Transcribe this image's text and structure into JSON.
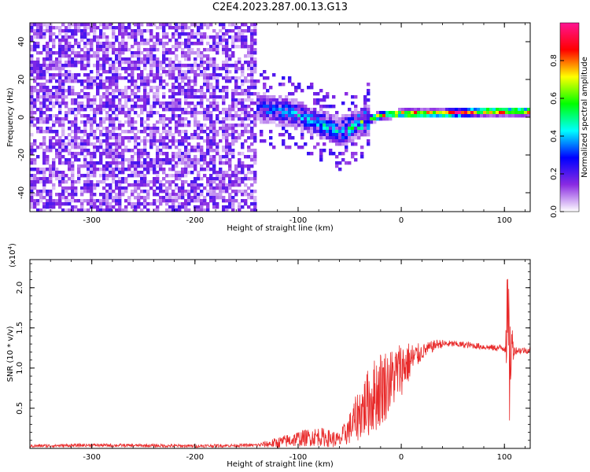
{
  "title": "C2E4.2023.287.00.13.G13",
  "chart_data": [
    {
      "type": "heatmap",
      "xlabel": "Height of straight line (km)",
      "ylabel": "Frequency (Hz)",
      "xlim": [
        -360,
        125
      ],
      "ylim": [
        -50,
        50
      ],
      "xticks": [
        -300,
        -200,
        -100,
        0,
        100
      ],
      "yticks": [
        -40,
        -20,
        0,
        20,
        40
      ],
      "colorbar": {
        "label": "Normalized spectral amplitude",
        "range": [
          0.0,
          1.0
        ],
        "ticks": [
          "0.0",
          "0.2",
          "0.4",
          "0.6",
          "0.8"
        ],
        "colormap": [
          "#ffffff",
          "#8a2be2",
          "#0000ff",
          "#00ffff",
          "#00ff00",
          "#ffff00",
          "#ff0000",
          "#ff1493"
        ]
      },
      "features": {
        "noise_region_x": [
          -360,
          -140
        ],
        "noise_amplitude": 0.2,
        "trace": [
          {
            "x": -140,
            "f": 5,
            "amp": 0.35
          },
          {
            "x": -110,
            "f": 3,
            "amp": 0.4
          },
          {
            "x": -80,
            "f": -3,
            "amp": 0.45
          },
          {
            "x": -60,
            "f": -8,
            "amp": 0.45
          },
          {
            "x": -40,
            "f": -3,
            "amp": 0.6
          },
          {
            "x": -20,
            "f": 1,
            "amp": 0.8
          },
          {
            "x": 0,
            "f": 2,
            "amp": 0.95
          },
          {
            "x": 40,
            "f": 2,
            "amp": 0.95
          },
          {
            "x": 80,
            "f": 3,
            "amp": 0.9
          },
          {
            "x": 125,
            "f": 3,
            "amp": 0.9
          }
        ]
      }
    },
    {
      "type": "line",
      "xlabel": "Height of straight line (km)",
      "ylabel": "SNR (10 * v/v)",
      "y_multiplier": "(x10",
      "y_multiplier_exp": "4",
      "y_multiplier_close": ")",
      "xlim": [
        -360,
        125
      ],
      "ylim": [
        0,
        2.35
      ],
      "xticks": [
        -300,
        -200,
        -100,
        0,
        100
      ],
      "yticks": [
        0.5,
        1.0,
        1.5,
        2.0
      ],
      "ytick_labels": [
        "0.5",
        "1.0",
        "1.5",
        "2.0"
      ],
      "series": [
        {
          "color": "#e82a2a",
          "envelope": {
            "x": [
              -360,
              -300,
              -200,
              -140,
              -120,
              -100,
              -80,
              -60,
              -50,
              -40,
              -30,
              -20,
              -10,
              0,
              20,
              35,
              50,
              70,
              90,
              100,
              103,
              105,
              107,
              110,
              125
            ],
            "mid": [
              0.03,
              0.04,
              0.03,
              0.04,
              0.07,
              0.12,
              0.15,
              0.1,
              0.25,
              0.45,
              0.6,
              0.75,
              0.85,
              1.0,
              1.2,
              1.3,
              1.3,
              1.28,
              1.25,
              1.25,
              1.6,
              1.0,
              1.3,
              1.22,
              1.22
            ],
            "amp": [
              0.02,
              0.02,
              0.02,
              0.02,
              0.07,
              0.1,
              0.12,
              0.1,
              0.2,
              0.35,
              0.45,
              0.5,
              0.4,
              0.35,
              0.1,
              0.06,
              0.04,
              0.04,
              0.04,
              0.05,
              0.7,
              0.8,
              0.3,
              0.05,
              0.04
            ]
          }
        }
      ]
    }
  ]
}
